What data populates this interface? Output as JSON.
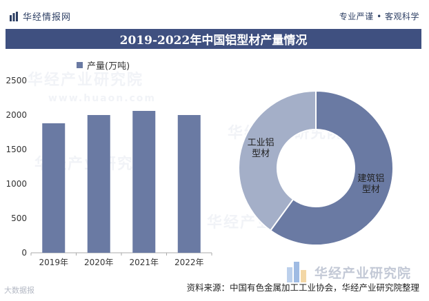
{
  "header": {
    "brand": "华经情报网",
    "slogan": "专业严谨 • 客观科学"
  },
  "title": "2019-2022年中国铝型材产量情况",
  "watermarks": [
    "华经产业研究院",
    "www.huaon.com"
  ],
  "chart_data": [
    {
      "type": "bar",
      "title": "2019-2022年中国铝型材产量情况",
      "categories": [
        "2019年",
        "2020年",
        "2021年",
        "2022年"
      ],
      "series": [
        {
          "name": "产量(万吨)",
          "values": [
            1880,
            2000,
            2060,
            2000
          ]
        }
      ],
      "ylim": [
        0,
        2500
      ],
      "yticks": [
        "0",
        "500",
        "1000",
        "1500",
        "2000",
        "2500"
      ],
      "legend": "产量(万吨)",
      "grid": false,
      "color": "#6a7aa3"
    },
    {
      "type": "pie",
      "donut": true,
      "labels": [
        "建筑铝型材",
        "工业铝型材"
      ],
      "display_labels": [
        "建筑铝\n型材",
        "工业铝\n型材"
      ],
      "values": [
        60,
        40
      ],
      "colors": [
        "#6a7aa3",
        "#a4afc8"
      ]
    }
  ],
  "footer": {
    "brand": "华经产业研究院",
    "source": "资料来源：中国有色金属加工工业协会，华经产业研究院整理",
    "watermark": "大数据报"
  }
}
